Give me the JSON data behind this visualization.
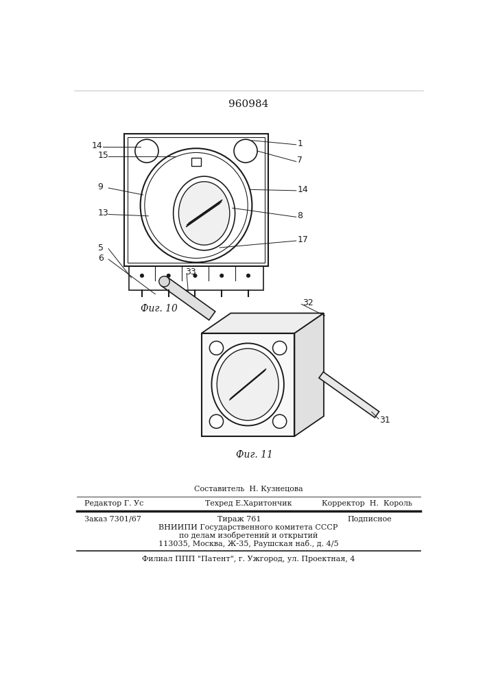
{
  "patent_number": "960984",
  "bg_color": "#ffffff",
  "line_color": "#1a1a1a",
  "fig10_label": "Фиг. 10",
  "fig11_label": "Фиг. 11",
  "footer_line1_left": "Редактор Г. Ус",
  "footer_line1_center": "Техред Е.Харитончик",
  "footer_line1_right": "Корректор  Н.  Король",
  "footer_above_center": "Составитель  Н. Кузнецова",
  "footer_line2_col1": "Заказ 7301/67",
  "footer_line2_col2": "Тираж 761",
  "footer_line2_col3": "Подписное",
  "footer_line3": "ВНИИПИ Государственного комитета СССР",
  "footer_line4": "по делам изобретений и открытий",
  "footer_line5": "113035, Москва, Ж-35, Раушская наб., д. 4/5",
  "footer_bottom": "Филиал ППП \"Патент\", г. Ужгород, ул. Проектная, 4"
}
